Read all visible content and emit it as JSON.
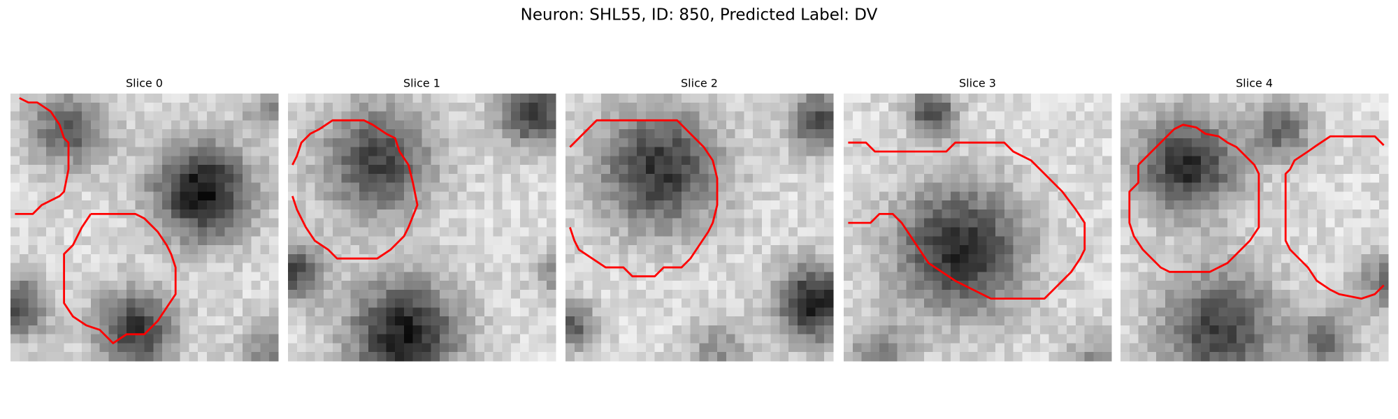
{
  "title": "Neuron: SHL55, ID: 850, Predicted Label: DV",
  "panels": [
    {
      "title": "Slice 0"
    },
    {
      "title": "Slice 1"
    },
    {
      "title": "Slice 2"
    },
    {
      "title": "Slice 3"
    },
    {
      "title": "Slice 4"
    }
  ]
}
